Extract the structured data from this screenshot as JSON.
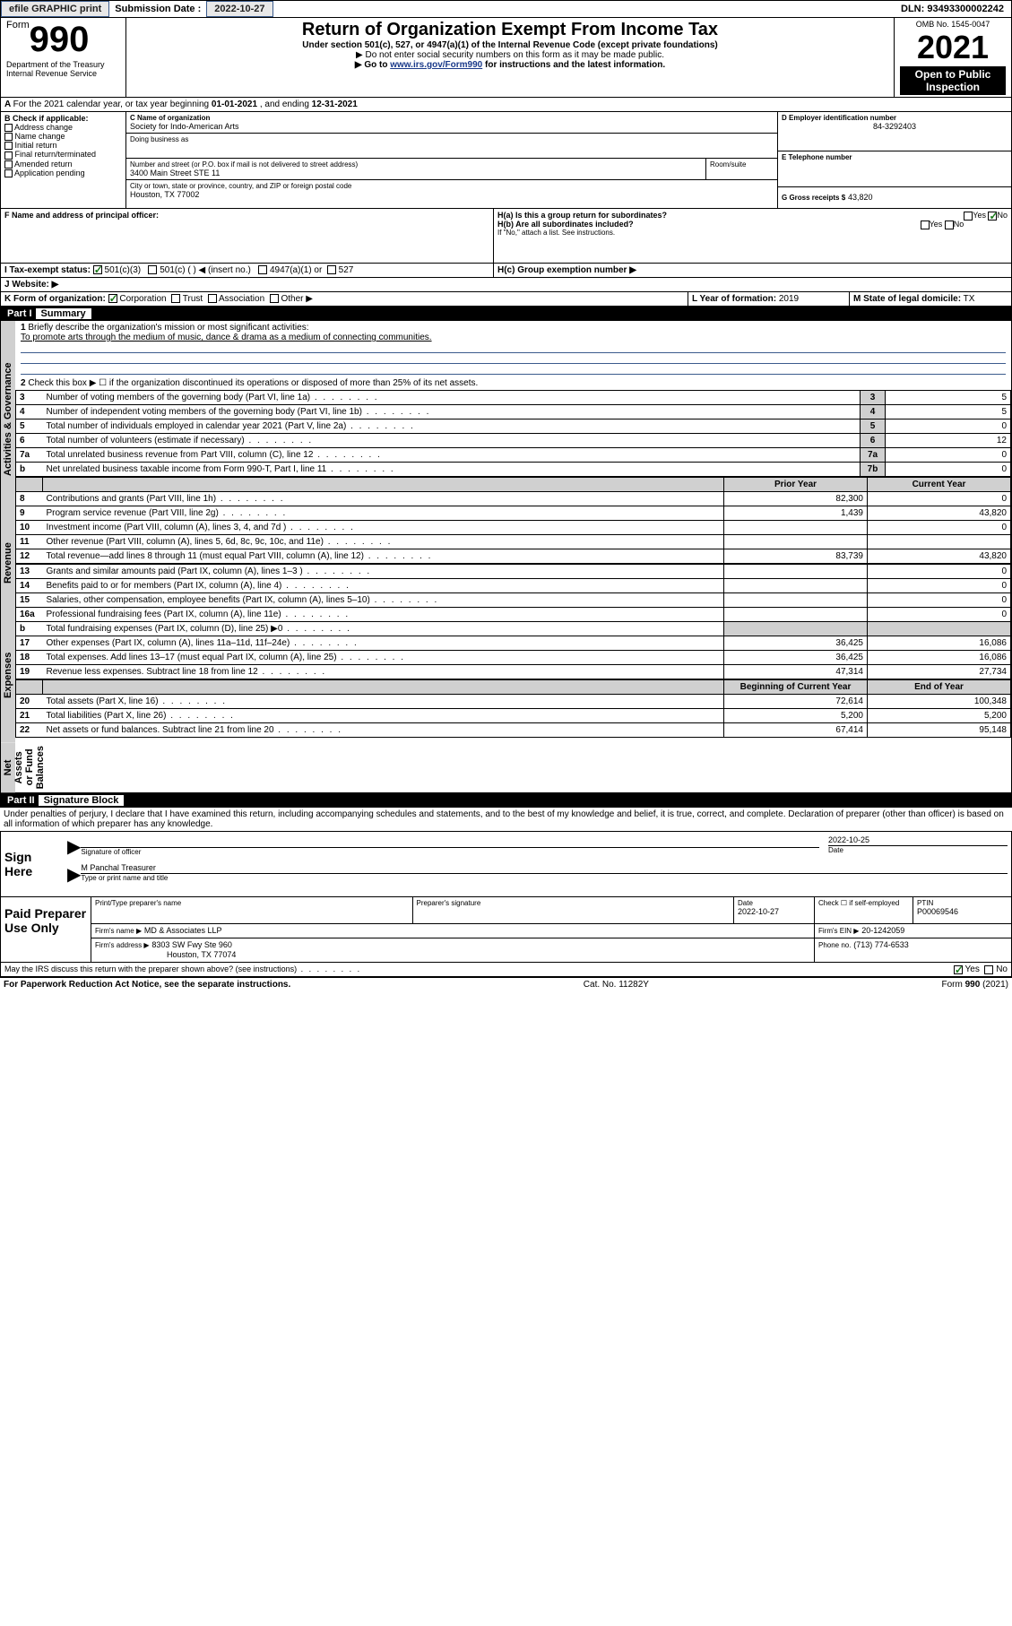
{
  "topbar": {
    "efile": "efile GRAPHIC print",
    "submission_label": "Submission Date :",
    "submission_date": "2022-10-27",
    "dln_label": "DLN:",
    "dln": "93493300002242"
  },
  "header": {
    "form_word": "Form",
    "form_number": "990",
    "dept": "Department of the Treasury",
    "irs": "Internal Revenue Service",
    "title": "Return of Organization Exempt From Income Tax",
    "subtitle": "Under section 501(c), 527, or 4947(a)(1) of the Internal Revenue Code (except private foundations)",
    "instr1": "▶ Do not enter social security numbers on this form as it may be made public.",
    "instr2_pre": "▶ Go to ",
    "instr2_link": "www.irs.gov/Form990",
    "instr2_post": " for instructions and the latest information.",
    "omb_label": "OMB No.",
    "omb": "1545-0047",
    "year": "2021",
    "open_public": "Open to Public Inspection"
  },
  "lineA": {
    "text_pre": "For the 2021 calendar year, or tax year beginning ",
    "begin": "01-01-2021",
    "mid": " , and ending ",
    "end": "12-31-2021"
  },
  "boxB": {
    "label": "B Check if applicable:",
    "items": [
      "Address change",
      "Name change",
      "Initial return",
      "Final return/terminated",
      "Amended return",
      "Application pending"
    ]
  },
  "boxC": {
    "label": "C Name of organization",
    "name": "Society for Indo-American Arts",
    "dba_label": "Doing business as",
    "street_label": "Number and street (or P.O. box if mail is not delivered to street address)",
    "room_label": "Room/suite",
    "street": "3400 Main Street STE 11",
    "city_label": "City or town, state or province, country, and ZIP or foreign postal code",
    "city": "Houston, TX  77002"
  },
  "boxD": {
    "label": "D Employer identification number",
    "value": "84-3292403"
  },
  "boxE": {
    "label": "E Telephone number"
  },
  "boxG": {
    "label": "G Gross receipts $",
    "value": "43,820"
  },
  "boxF": {
    "label": "F  Name and address of principal officer:"
  },
  "boxH": {
    "ha": "H(a)  Is this a group return for subordinates?",
    "hb": "H(b)  Are all subordinates included?",
    "hb_note": "If \"No,\" attach a list. See instructions.",
    "hc": "H(c)  Group exemption number ▶",
    "yes": "Yes",
    "no": "No"
  },
  "boxI": {
    "label": "I   Tax-exempt status:",
    "o1": "501(c)(3)",
    "o2": "501(c) (  ) ◀ (insert no.)",
    "o3": "4947(a)(1) or",
    "o4": "527"
  },
  "boxJ": {
    "label": "J   Website: ▶"
  },
  "boxK": {
    "label": "K Form of organization:",
    "o1": "Corporation",
    "o2": "Trust",
    "o3": "Association",
    "o4": "Other ▶"
  },
  "boxL": {
    "label": "L Year of formation:",
    "value": "2019"
  },
  "boxM": {
    "label": "M State of legal domicile:",
    "value": "TX"
  },
  "part1": {
    "bar": "Part I",
    "title": "Summary",
    "q1": "Briefly describe the organization's mission or most significant activities:",
    "mission": "To promote arts through the medium of music, dance & drama as a medium of connecting communities.",
    "q2": "Check this box ▶ ☐  if the organization discontinued its operations or disposed of more than 25% of its net assets.",
    "sections": {
      "ag": "Activities & Governance",
      "rev": "Revenue",
      "exp": "Expenses",
      "na": "Net Assets or Fund Balances"
    },
    "col_prior": "Prior Year",
    "col_current": "Current Year",
    "col_boc": "Beginning of Current Year",
    "col_eoy": "End of Year",
    "rows_ag": [
      {
        "n": "3",
        "t": "Number of voting members of the governing body (Part VI, line 1a)",
        "box": "3",
        "v": "5"
      },
      {
        "n": "4",
        "t": "Number of independent voting members of the governing body (Part VI, line 1b)",
        "box": "4",
        "v": "5"
      },
      {
        "n": "5",
        "t": "Total number of individuals employed in calendar year 2021 (Part V, line 2a)",
        "box": "5",
        "v": "0"
      },
      {
        "n": "6",
        "t": "Total number of volunteers (estimate if necessary)",
        "box": "6",
        "v": "12"
      },
      {
        "n": "7a",
        "t": "Total unrelated business revenue from Part VIII, column (C), line 12",
        "box": "7a",
        "v": "0"
      },
      {
        "n": "b",
        "t": "Net unrelated business taxable income from Form 990-T, Part I, line 11",
        "box": "7b",
        "v": "0"
      }
    ],
    "rows_rev": [
      {
        "n": "8",
        "t": "Contributions and grants (Part VIII, line 1h)",
        "p": "82,300",
        "c": "0"
      },
      {
        "n": "9",
        "t": "Program service revenue (Part VIII, line 2g)",
        "p": "1,439",
        "c": "43,820"
      },
      {
        "n": "10",
        "t": "Investment income (Part VIII, column (A), lines 3, 4, and 7d )",
        "p": "",
        "c": "0"
      },
      {
        "n": "11",
        "t": "Other revenue (Part VIII, column (A), lines 5, 6d, 8c, 9c, 10c, and 11e)",
        "p": "",
        "c": ""
      },
      {
        "n": "12",
        "t": "Total revenue—add lines 8 through 11 (must equal Part VIII, column (A), line 12)",
        "p": "83,739",
        "c": "43,820"
      }
    ],
    "rows_exp": [
      {
        "n": "13",
        "t": "Grants and similar amounts paid (Part IX, column (A), lines 1–3 )",
        "p": "",
        "c": "0"
      },
      {
        "n": "14",
        "t": "Benefits paid to or for members (Part IX, column (A), line 4)",
        "p": "",
        "c": "0"
      },
      {
        "n": "15",
        "t": "Salaries, other compensation, employee benefits (Part IX, column (A), lines 5–10)",
        "p": "",
        "c": "0"
      },
      {
        "n": "16a",
        "t": "Professional fundraising fees (Part IX, column (A), line 11e)",
        "p": "",
        "c": "0"
      },
      {
        "n": "b",
        "t": "Total fundraising expenses (Part IX, column (D), line 25) ▶0",
        "p": "SHADE",
        "c": "SHADE"
      },
      {
        "n": "17",
        "t": "Other expenses (Part IX, column (A), lines 11a–11d, 11f–24e)",
        "p": "36,425",
        "c": "16,086"
      },
      {
        "n": "18",
        "t": "Total expenses. Add lines 13–17 (must equal Part IX, column (A), line 25)",
        "p": "36,425",
        "c": "16,086"
      },
      {
        "n": "19",
        "t": "Revenue less expenses. Subtract line 18 from line 12",
        "p": "47,314",
        "c": "27,734"
      }
    ],
    "rows_na": [
      {
        "n": "20",
        "t": "Total assets (Part X, line 16)",
        "p": "72,614",
        "c": "100,348"
      },
      {
        "n": "21",
        "t": "Total liabilities (Part X, line 26)",
        "p": "5,200",
        "c": "5,200"
      },
      {
        "n": "22",
        "t": "Net assets or fund balances. Subtract line 21 from line 20",
        "p": "67,414",
        "c": "95,148"
      }
    ]
  },
  "part2": {
    "bar": "Part II",
    "title": "Signature Block",
    "decl": "Under penalties of perjury, I declare that I have examined this return, including accompanying schedules and statements, and to the best of my knowledge and belief, it is true, correct, and complete. Declaration of preparer (other than officer) is based on all information of which preparer has any knowledge.",
    "sign_here": "Sign Here",
    "sig_officer": "Signature of officer",
    "sig_date_label": "Date",
    "sig_date": "2022-10-25",
    "officer_name": "M Panchal Treasurer",
    "type_name": "Type or print name and title",
    "paid": "Paid Preparer Use Only",
    "prep_name_label": "Print/Type preparer's name",
    "prep_sig_label": "Preparer's signature",
    "date_label": "Date",
    "prep_date": "2022-10-27",
    "check_if": "Check ☐ if self-employed",
    "ptin_label": "PTIN",
    "ptin": "P00069546",
    "firm_name_label": "Firm's name   ▶",
    "firm_name": "MD & Associates LLP",
    "firm_ein_label": "Firm's EIN ▶",
    "firm_ein": "20-1242059",
    "firm_addr_label": "Firm's address ▶",
    "firm_addr1": "8303 SW Fwy Ste 960",
    "firm_addr2": "Houston, TX  77074",
    "phone_label": "Phone no.",
    "phone": "(713) 774-6533",
    "irs_discuss": "May the IRS discuss this return with the preparer shown above? (see instructions)",
    "yes": "Yes",
    "no": "No"
  },
  "footer": {
    "left": "For Paperwork Reduction Act Notice, see the separate instructions.",
    "mid": "Cat. No. 11282Y",
    "right_pre": "Form ",
    "right_form": "990",
    "right_post": " (2021)"
  }
}
